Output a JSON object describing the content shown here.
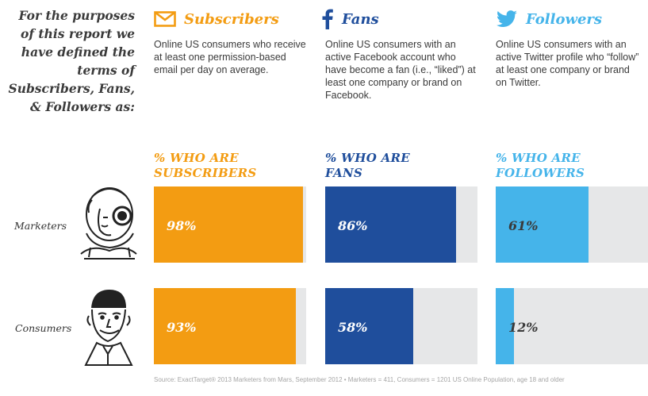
{
  "intro": "For the purposes of this report we have defined the terms of Subscribers, Fans, & Followers as:",
  "columns": [
    {
      "title": "Subscribers",
      "icon": "envelope-icon",
      "color": "#f39c12",
      "description": "Online US consumers who receive at least one permission-based email per day on average.",
      "pct_heading": "% WHO ARE\nSUBSCRIBERS"
    },
    {
      "title": "Fans",
      "icon": "facebook-f-icon",
      "color": "#1f4e9c",
      "description": "Online US consumers with an active Facebook account who have become a fan (i.e., “liked”) at least one company or brand on Facebook.",
      "pct_heading": "% WHO ARE\nFANS"
    },
    {
      "title": "Followers",
      "icon": "twitter-bird-icon",
      "color": "#45b4ea",
      "description": "Online US consumers with an active Twitter profile who “follow” at least one company or brand on Twitter.",
      "pct_heading": "% WHO ARE\nFOLLOWERS"
    }
  ],
  "chart_data": {
    "type": "bar",
    "orientation": "horizontal",
    "categories": [
      "Marketers",
      "Consumers"
    ],
    "series": [
      {
        "name": "Subscribers",
        "values": [
          98,
          93
        ],
        "labels": [
          "98%",
          "93%"
        ],
        "color": "#f39c12"
      },
      {
        "name": "Fans",
        "values": [
          86,
          58
        ],
        "labels": [
          "86%",
          "58%"
        ],
        "color": "#1f4e9c"
      },
      {
        "name": "Followers",
        "values": [
          61,
          12
        ],
        "labels": [
          "61%",
          "12%"
        ],
        "color": "#45b4ea"
      }
    ],
    "xlim": [
      0,
      100
    ],
    "track_color": "#e6e7e8"
  },
  "source": "Source: ExactTarget® 2013 Marketers from Mars, September 2012 • Marketers = 411, Consumers = 1201 US Online Population, age 18 and older"
}
